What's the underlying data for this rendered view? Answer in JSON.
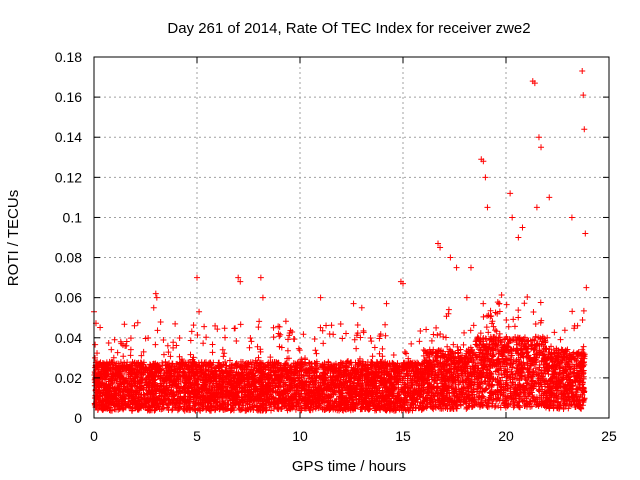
{
  "chart_data": {
    "type": "scatter",
    "title": "Day 261 of 2014, Rate Of TEC Index for receiver zwe2",
    "xlabel": "GPS time / hours",
    "ylabel": "ROTI / TECUs",
    "xlim": [
      0,
      25
    ],
    "ylim": [
      0,
      0.18
    ],
    "x_ticks": [
      0,
      5,
      10,
      15,
      20,
      25
    ],
    "x_tick_labels": [
      "0",
      "5",
      "10",
      "15",
      "20",
      "25"
    ],
    "y_ticks": [
      0,
      0.02,
      0.04,
      0.06,
      0.08,
      0.1,
      0.12,
      0.14,
      0.16,
      0.18
    ],
    "y_tick_labels": [
      "0",
      "0.02",
      "0.04",
      "0.06",
      "0.08",
      "0.1",
      "0.12",
      "0.14",
      "0.16",
      "0.18"
    ],
    "grid": true,
    "marker": "+",
    "color": "#ff0000",
    "series": [
      {
        "name": "ROTI",
        "x": [
          0.0,
          0.05,
          0.15,
          1.0,
          1.3,
          2.9,
          3.0,
          3.05,
          5.0,
          5.1,
          7.0,
          7.1,
          8.1,
          8.2,
          11.0,
          12.6,
          13.0,
          14.2,
          14.9,
          15.0,
          16.7,
          16.8,
          17.3,
          17.6,
          18.1,
          18.3,
          18.8,
          18.9,
          19.0,
          19.1,
          20.2,
          20.3,
          20.6,
          20.8,
          21.3,
          21.4,
          21.5,
          21.6,
          21.7,
          22.1,
          23.2,
          23.7,
          23.75,
          23.8,
          23.85,
          23.9
        ],
        "y": [
          0.053,
          0.03,
          0.028,
          0.039,
          0.038,
          0.055,
          0.062,
          0.06,
          0.07,
          0.053,
          0.07,
          0.068,
          0.07,
          0.06,
          0.06,
          0.057,
          0.055,
          0.057,
          0.068,
          0.067,
          0.087,
          0.085,
          0.08,
          0.075,
          0.06,
          0.075,
          0.129,
          0.128,
          0.12,
          0.105,
          0.112,
          0.1,
          0.09,
          0.095,
          0.168,
          0.167,
          0.105,
          0.14,
          0.135,
          0.11,
          0.1,
          0.173,
          0.161,
          0.144,
          0.092,
          0.065
        ]
      }
    ]
  }
}
